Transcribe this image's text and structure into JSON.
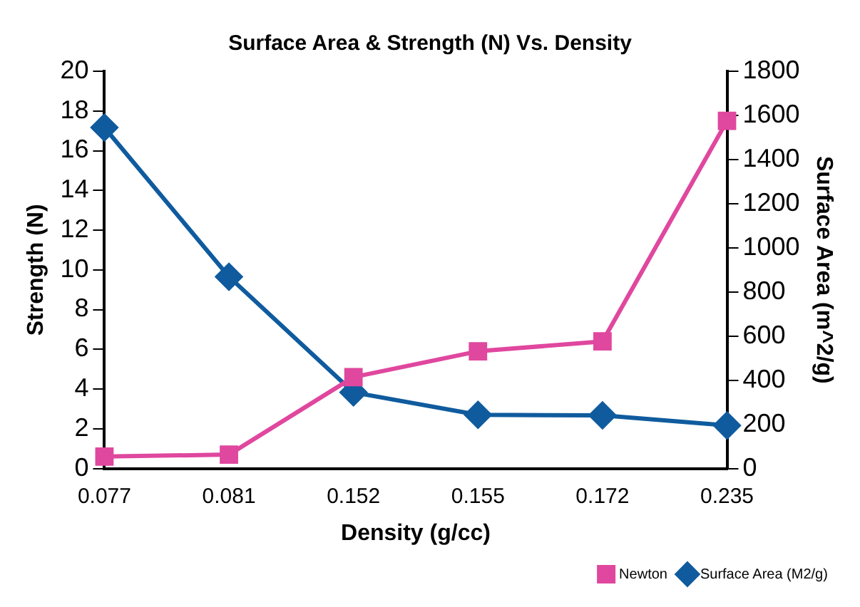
{
  "chart_data": {
    "type": "line",
    "title": "Surface Area & Strength (N) Vs. Density",
    "xlabel": "Density (g/cc)",
    "ylabel": "Strength (N)",
    "y2label": "Surface Area (m^2/g)",
    "categories": [
      "0.077",
      "0.081",
      "0.152",
      "0.155",
      "0.172",
      "0.235"
    ],
    "series": [
      {
        "name": "Newton",
        "color": "#e0479e",
        "marker": "square",
        "values": [
          0.6,
          0.7,
          4.6,
          5.9,
          6.4,
          17.5
        ]
      },
      {
        "name": "Surface Area (M2/g)",
        "color": "#0f5b9e",
        "marker": "diamond",
        "axis": "y2",
        "values": [
          1545,
          869,
          345,
          243,
          241,
          195
        ]
      }
    ],
    "ylim": [
      0,
      20
    ],
    "yticks": [
      0,
      2,
      4,
      6,
      8,
      10,
      12,
      14,
      16,
      18,
      20
    ],
    "y2lim": [
      0,
      1800
    ],
    "y2ticks": [
      0,
      200,
      400,
      600,
      800,
      1000,
      1200,
      1400,
      1600,
      1800
    ],
    "grid": false,
    "legend": "bottom right"
  }
}
